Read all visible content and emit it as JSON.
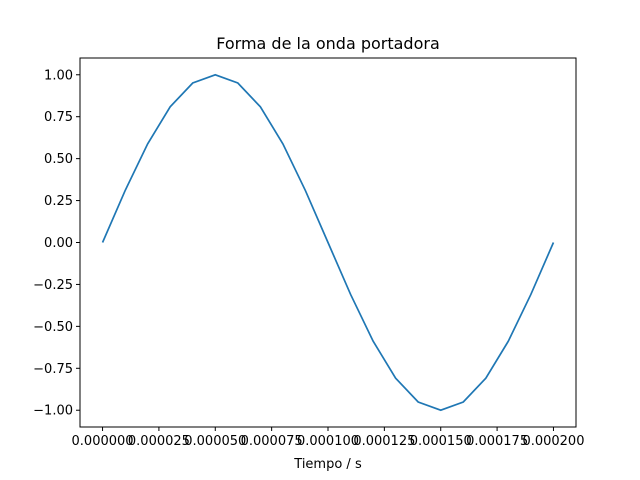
{
  "chart_data": {
    "type": "line",
    "title": "Forma de la onda portadora",
    "xlabel": "Tiempo / s",
    "ylabel": "",
    "xlim": [
      -1e-05,
      0.00021
    ],
    "ylim": [
      -1.1,
      1.1
    ],
    "x_ticks": [
      "0.000000",
      "0.000025",
      "0.000050",
      "0.000075",
      "0.000100",
      "0.000125",
      "0.000150",
      "0.000175",
      "0.000200"
    ],
    "x_tick_values": [
      0.0,
      2.5e-05,
      5e-05,
      7.5e-05,
      0.0001,
      0.000125,
      0.00015,
      0.000175,
      0.0002
    ],
    "y_ticks": [
      "1.00",
      "0.75",
      "0.50",
      "0.25",
      "0.00",
      "−0.25",
      "−0.50",
      "−0.75",
      "−1.00"
    ],
    "y_tick_values": [
      1.0,
      0.75,
      0.5,
      0.25,
      0.0,
      -0.25,
      -0.5,
      -0.75,
      -1.0
    ],
    "grid": false,
    "series": [
      {
        "color": "#1f77b4",
        "x": [
          0.0,
          1e-05,
          2e-05,
          3e-05,
          4e-05,
          5e-05,
          6e-05,
          7e-05,
          8e-05,
          9e-05,
          0.0001,
          0.00011,
          0.00012,
          0.00013,
          0.00014,
          0.00015,
          0.00016,
          0.00017,
          0.00018,
          0.00019,
          0.0002
        ],
        "y": [
          0.0,
          0.309,
          0.588,
          0.809,
          0.951,
          1.0,
          0.951,
          0.809,
          0.588,
          0.309,
          0.0,
          -0.309,
          -0.588,
          -0.809,
          -0.951,
          -1.0,
          -0.951,
          -0.809,
          -0.588,
          -0.309,
          0.0
        ]
      }
    ]
  }
}
